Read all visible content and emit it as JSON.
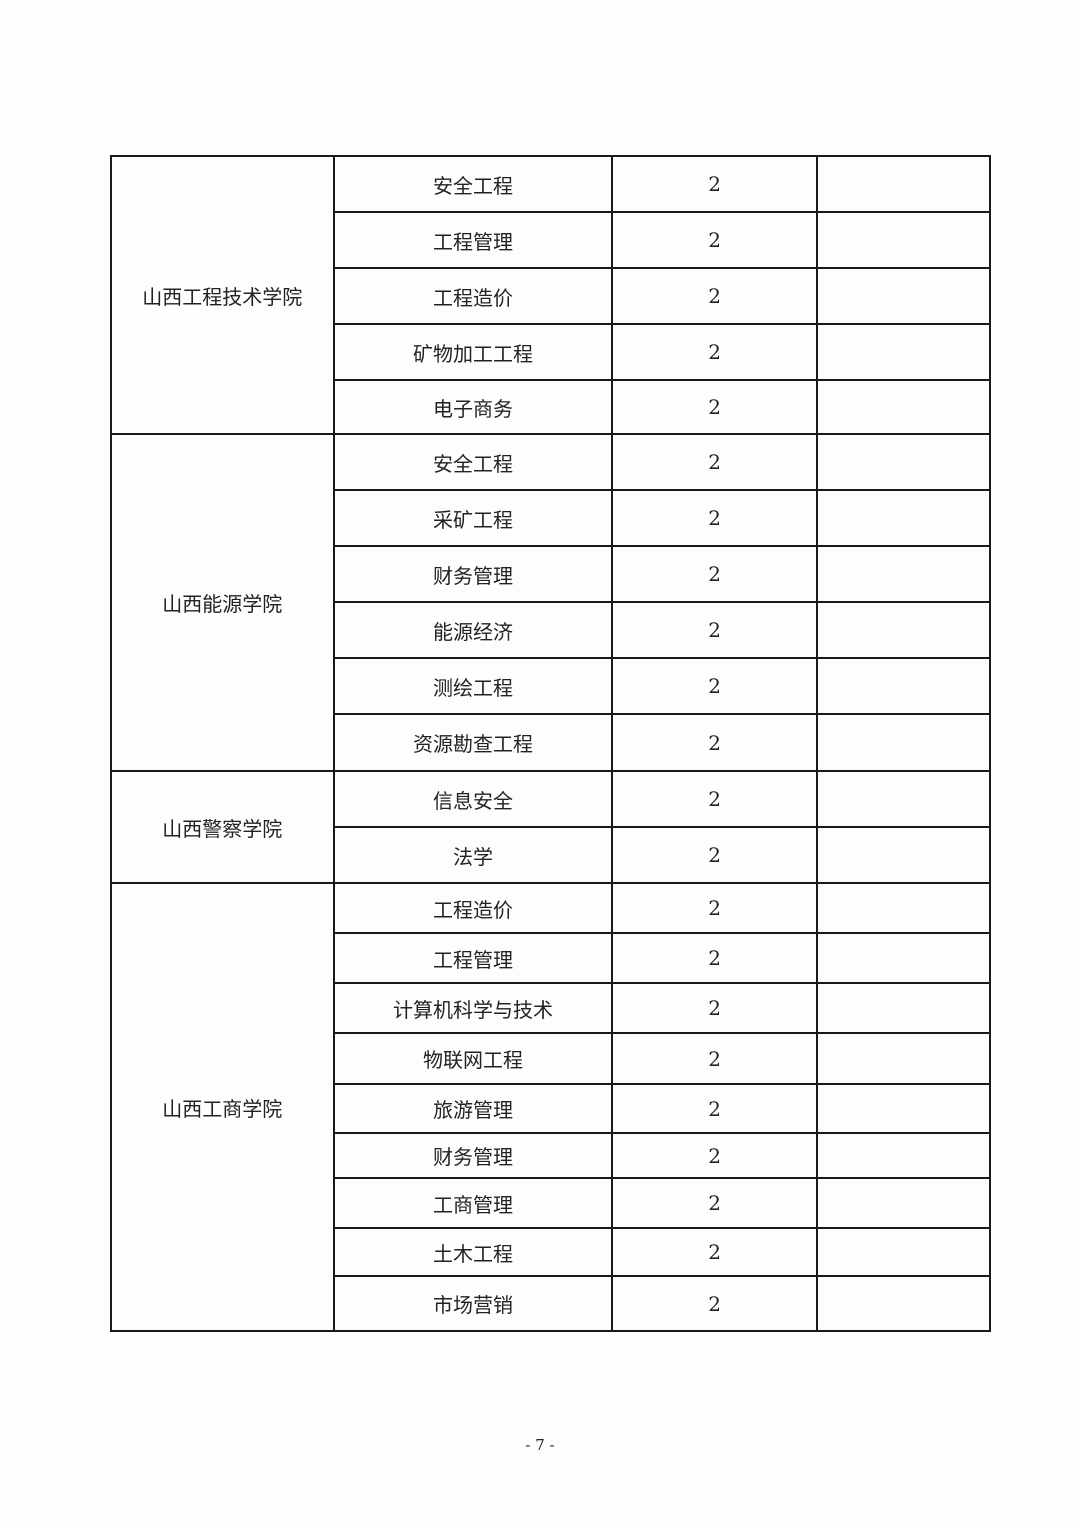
{
  "groups": [
    {
      "school": "山西工程技术学院",
      "rows": [
        [
          "安全工程",
          "2"
        ],
        [
          "工程管理",
          "2"
        ],
        [
          "工程造价",
          "2"
        ],
        [
          "矿物加工工程",
          "2"
        ],
        [
          "电子商务",
          "2"
        ]
      ]
    },
    {
      "school": "山西能源学院",
      "rows": [
        [
          "安全工程",
          "2"
        ],
        [
          "采矿工程",
          "2"
        ],
        [
          "财务管理",
          "2"
        ],
        [
          "能源经济",
          "2"
        ],
        [
          "测绘工程",
          "2"
        ],
        [
          "资源勘查工程",
          "2"
        ]
      ]
    },
    {
      "school": "山西警察学院",
      "rows": [
        [
          "信息安全",
          "2"
        ],
        [
          "法学",
          "2"
        ]
      ]
    },
    {
      "school": "山西工商学院",
      "rows": [
        [
          "工程造价",
          "2"
        ],
        [
          "工程管理",
          "2"
        ],
        [
          "计算机科学与技术",
          "2"
        ],
        [
          "物联网工程",
          "2"
        ],
        [
          "旅游管理",
          "2"
        ],
        [
          "财务管理",
          "2"
        ],
        [
          "工商管理",
          "2"
        ],
        [
          "土木工程",
          "2"
        ],
        [
          "市场营销",
          "2"
        ]
      ]
    }
  ],
  "page_number": "- 7 -"
}
